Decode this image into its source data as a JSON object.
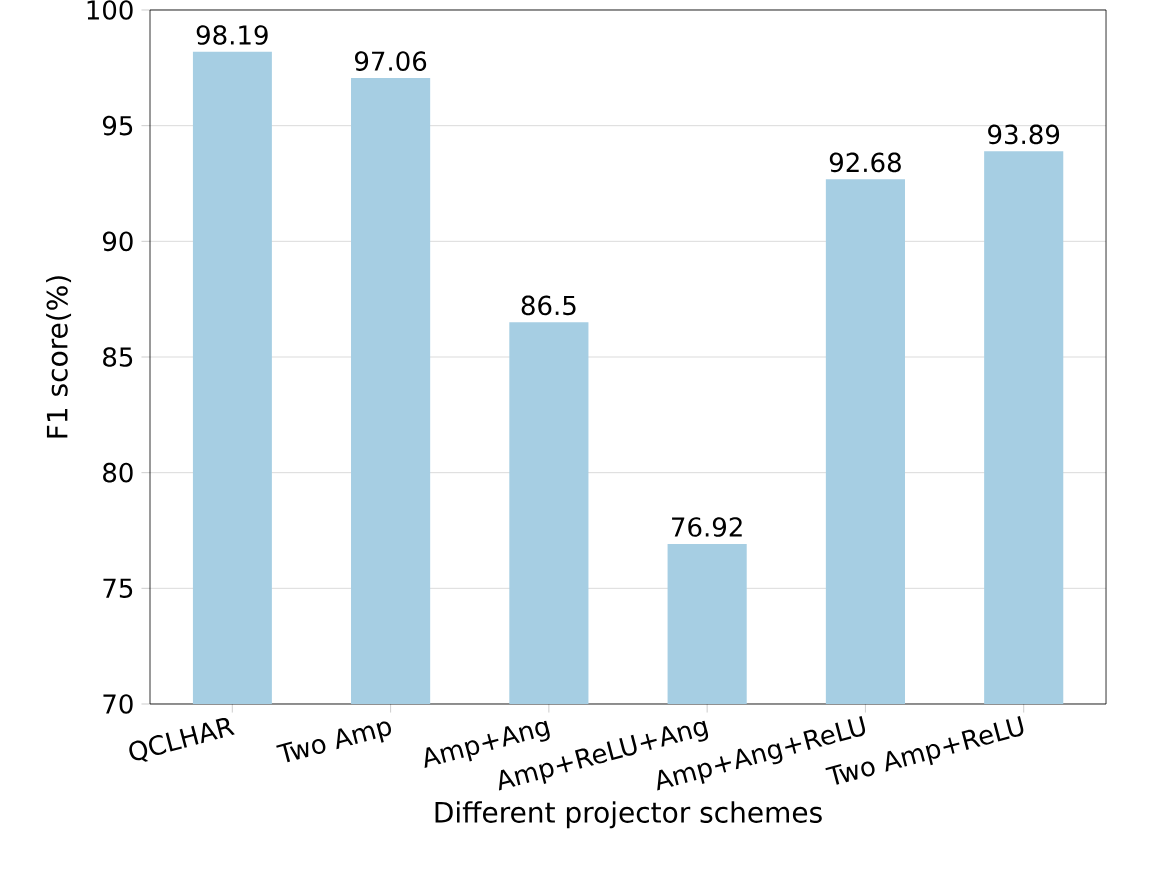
{
  "chart_data": {
    "type": "bar",
    "xlabel": "Different projector schemes",
    "ylabel": "F1 score(%)",
    "categories": [
      "QCLHAR",
      "Two Amp",
      "Amp+Ang",
      "Amp+ReLU+Ang",
      "Amp+Ang+ReLU",
      "Two Amp+ReLU"
    ],
    "values": [
      98.19,
      97.06,
      86.5,
      76.92,
      92.68,
      93.89
    ],
    "color": "#a6cee3",
    "data_labels": true,
    "grid": "y",
    "ylim": [
      70,
      100
    ],
    "yticks": [
      70,
      75,
      80,
      85,
      90,
      95,
      100
    ]
  }
}
